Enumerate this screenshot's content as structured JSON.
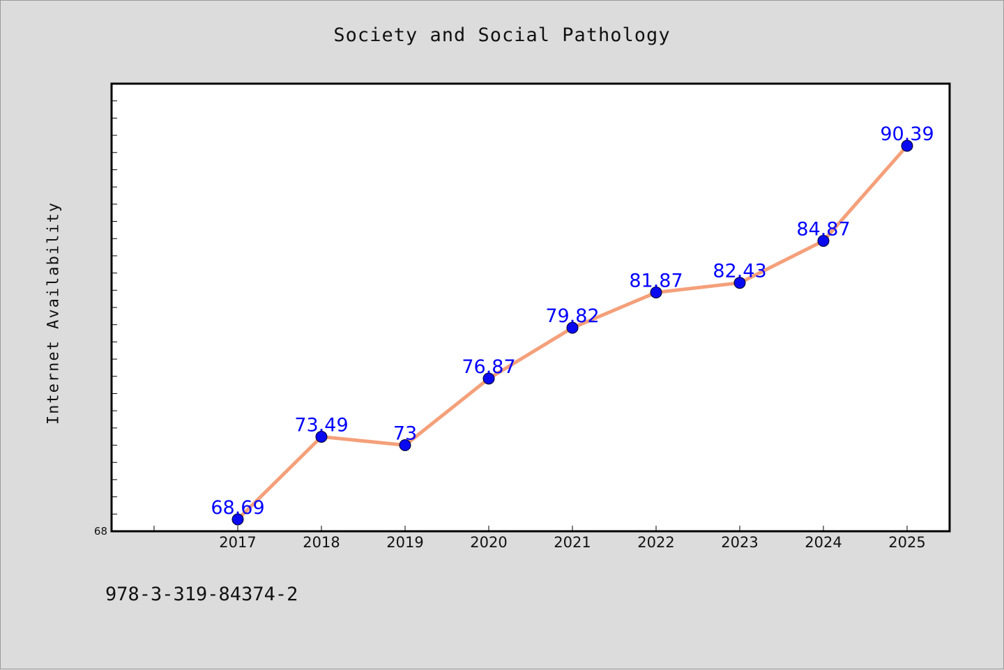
{
  "chart_data": {
    "type": "line",
    "title": "Society and Social Pathology",
    "xlabel": "",
    "ylabel": "Internet Availability",
    "categories": [
      "2017",
      "2018",
      "2019",
      "2020",
      "2021",
      "2022",
      "2023",
      "2024",
      "2025"
    ],
    "series": [
      {
        "values": [
          68.69,
          73.49,
          73,
          76.87,
          79.82,
          81.87,
          82.43,
          84.87,
          90.39
        ],
        "data_labels": [
          "68.69",
          "73.49",
          "73",
          "76.87",
          "79.82",
          "81.87",
          "82.43",
          "84.87",
          "90.39"
        ],
        "line_color": "#f4a07a",
        "marker_color": "#0a0af0",
        "label_color": "#0000ff"
      }
    ],
    "ylim": [
      68,
      94
    ],
    "y_tick_labels": [
      "68"
    ],
    "grid": false,
    "legend": "none"
  },
  "footer_text": "978-3-319-84374-2"
}
